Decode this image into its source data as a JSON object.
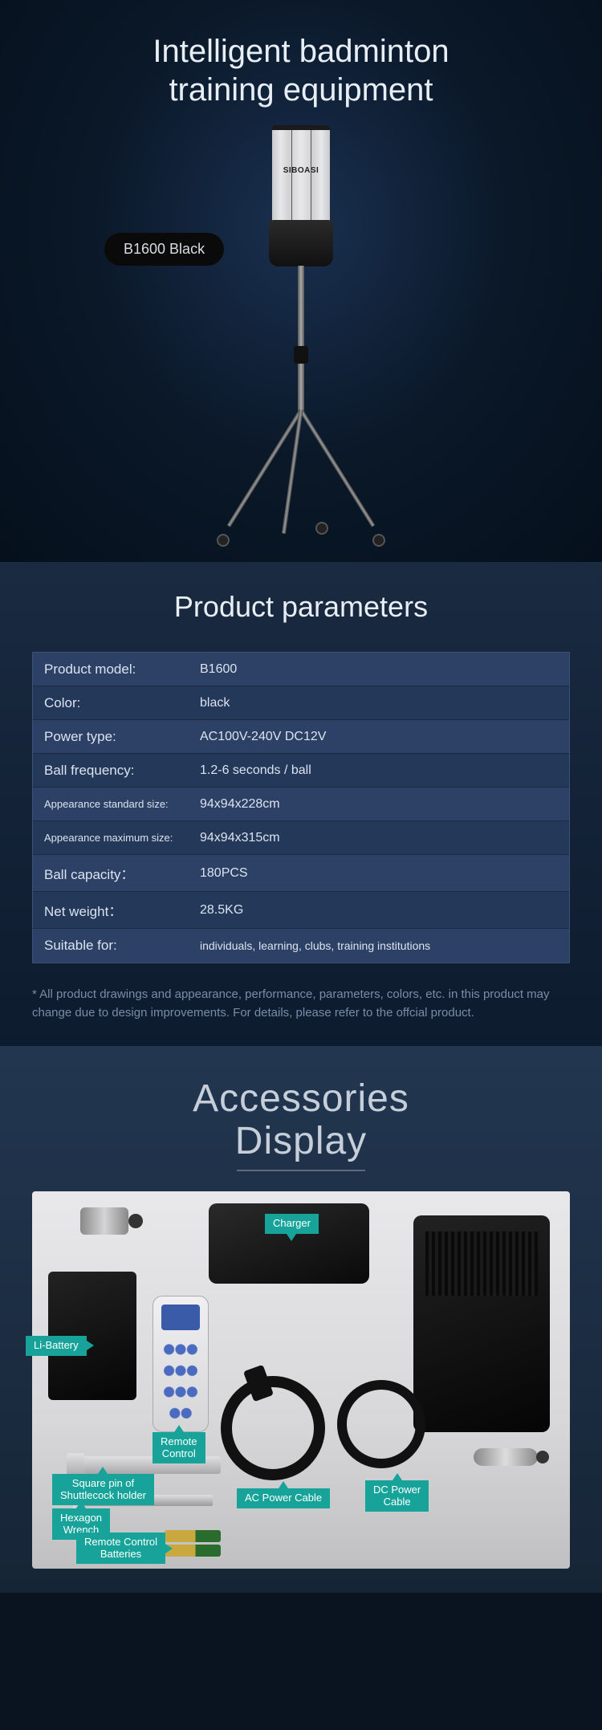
{
  "hero": {
    "title_line1": "Intelligent badminton",
    "title_line2": "training equipment",
    "model_badge": "B1600 Black",
    "tube_brand": "SIBOASI"
  },
  "params_section": {
    "heading": "Product parameters",
    "rows": [
      {
        "label": "Product model:",
        "value": "B1600",
        "label_small": false
      },
      {
        "label": "Color:",
        "value": "black",
        "label_small": false
      },
      {
        "label": "Power type:",
        "value": "AC100V-240V   DC12V",
        "label_small": false
      },
      {
        "label": "Ball frequency:",
        "value": "1.2-6 seconds / ball",
        "label_small": false
      },
      {
        "label": "Appearance standard size:",
        "value": "94x94x228cm",
        "label_small": true
      },
      {
        "label": "Appearance maximum size:",
        "value": "94x94x315cm",
        "label_small": true
      },
      {
        "label": "Ball capacity：",
        "value": "180PCS",
        "label_small": false
      },
      {
        "label": "Net weight：",
        "value": "28.5KG",
        "label_small": false
      },
      {
        "label": "Suitable for:",
        "value": "individuals, learning, clubs, training institutions",
        "label_small": false,
        "value_small": true
      }
    ],
    "disclaimer": "* All product drawings and appearance, performance, parameters, colors, etc. in this product may change due to design improvements. For details, please refer to the offcial product."
  },
  "accessories": {
    "title_line1": "Accessories",
    "title_line2": "Display",
    "tags": {
      "charger": "Charger",
      "li_battery": "Li-Battery",
      "remote": "Remote\nControl",
      "square_pin": "Square pin of\nShuttlecock holder",
      "hex_wrench": "Hexagon\nWrench",
      "rc_batteries": "Remote Control\nBatteries",
      "ac_cable": "AC Power Cable",
      "dc_cable": "DC Power\nCable"
    }
  },
  "colors": {
    "tag_bg": "#17a39a",
    "table_bg": "#24385a",
    "table_alt": "#2d4166",
    "table_border": "#3a5278"
  }
}
